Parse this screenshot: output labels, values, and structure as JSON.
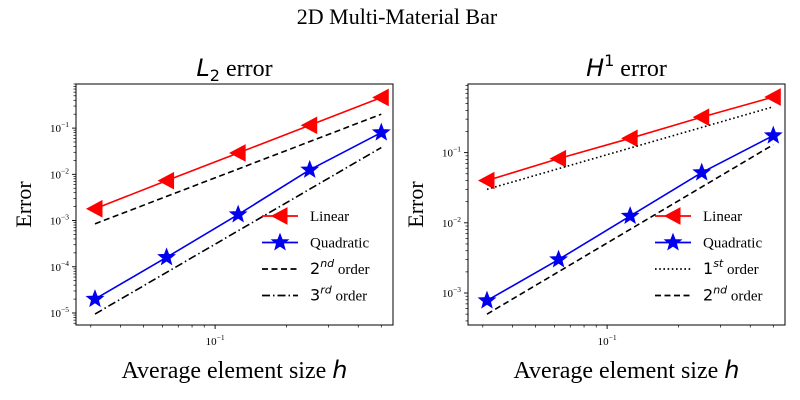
{
  "figure": {
    "suptitle": "2D Multi-Material Bar"
  },
  "chart_data": [
    {
      "type": "line",
      "title_math": "L",
      "title_sub": "2",
      "title_text": " error",
      "xlabel_text": "Average element size ",
      "xlabel_math": "h",
      "ylabel": "Error",
      "xscale": "log",
      "yscale": "log",
      "xlim": [
        0.026,
        0.56
      ],
      "ylim": [
        5.5e-06,
        0.9
      ],
      "x_ticks": [
        {
          "value": 0.1,
          "base": "10",
          "exp": "−1"
        }
      ],
      "y_ticks": [
        {
          "value": 1e-05,
          "base": "10",
          "exp": "−5"
        },
        {
          "value": 0.0001,
          "base": "10",
          "exp": "−4"
        },
        {
          "value": 0.001,
          "base": "10",
          "exp": "−3"
        },
        {
          "value": 0.01,
          "base": "10",
          "exp": "−2"
        },
        {
          "value": 0.1,
          "base": "10",
          "exp": "−1"
        }
      ],
      "series": [
        {
          "name": "Linear",
          "label_text": "Linear",
          "color": "#ff0000",
          "style": "solid",
          "marker": "triangle-left",
          "x": [
            0.03125,
            0.0625,
            0.125,
            0.25,
            0.5
          ],
          "y": [
            0.0018,
            0.0073,
            0.029,
            0.115,
            0.46
          ]
        },
        {
          "name": "Quadratic",
          "label_text": "Quadratic",
          "color": "#0000ee",
          "style": "solid",
          "marker": "star",
          "x": [
            0.03125,
            0.0625,
            0.125,
            0.25,
            0.5
          ],
          "y": [
            2e-05,
            0.00016,
            0.00135,
            0.0125,
            0.08
          ]
        },
        {
          "name": "2nd order",
          "label_math": "2",
          "label_sup": "nd",
          "label_text": " order",
          "color": "#000000",
          "style": "dashed",
          "marker": "none",
          "x": [
            0.03125,
            0.5
          ],
          "y": [
            0.00085,
            0.2
          ]
        },
        {
          "name": "3rd order",
          "label_math": "3",
          "label_sup": "rd",
          "label_text": " order",
          "color": "#000000",
          "style": "dashdot",
          "marker": "none",
          "x": [
            0.03125,
            0.5
          ],
          "y": [
            9.5e-06,
            0.038
          ]
        }
      ]
    },
    {
      "type": "line",
      "title_math": "H",
      "title_sup": "1",
      "title_text": " error",
      "xlabel_text": "Average element size ",
      "xlabel_math": "h",
      "ylabel": "Error",
      "xscale": "log",
      "yscale": "log",
      "xlim": [
        0.026,
        0.56
      ],
      "ylim": [
        0.00035,
        0.95
      ],
      "x_ticks": [
        {
          "value": 0.1,
          "base": "10",
          "exp": "−1"
        }
      ],
      "y_ticks": [
        {
          "value": 0.001,
          "base": "10",
          "exp": "−3"
        },
        {
          "value": 0.01,
          "base": "10",
          "exp": "−2"
        },
        {
          "value": 0.1,
          "base": "10",
          "exp": "−1"
        }
      ],
      "series": [
        {
          "name": "Linear",
          "label_text": "Linear",
          "color": "#ff0000",
          "style": "solid",
          "marker": "triangle-left",
          "x": [
            0.03125,
            0.0625,
            0.125,
            0.25,
            0.5
          ],
          "y": [
            0.04,
            0.082,
            0.16,
            0.32,
            0.62
          ]
        },
        {
          "name": "Quadratic",
          "label_text": "Quadratic",
          "color": "#0000ee",
          "style": "solid",
          "marker": "star",
          "x": [
            0.03125,
            0.0625,
            0.125,
            0.25,
            0.5
          ],
          "y": [
            0.00078,
            0.003,
            0.0125,
            0.052,
            0.175
          ]
        },
        {
          "name": "1st order",
          "label_math": "1",
          "label_sup": "st",
          "label_text": " order",
          "color": "#000000",
          "style": "dotted",
          "marker": "none",
          "x": [
            0.03125,
            0.5
          ],
          "y": [
            0.03,
            0.45
          ]
        },
        {
          "name": "2nd order",
          "label_math": "2",
          "label_sup": "nd",
          "label_text": " order",
          "color": "#000000",
          "style": "dashed",
          "marker": "none",
          "x": [
            0.03125,
            0.5
          ],
          "y": [
            0.0005,
            0.13
          ]
        }
      ]
    }
  ]
}
